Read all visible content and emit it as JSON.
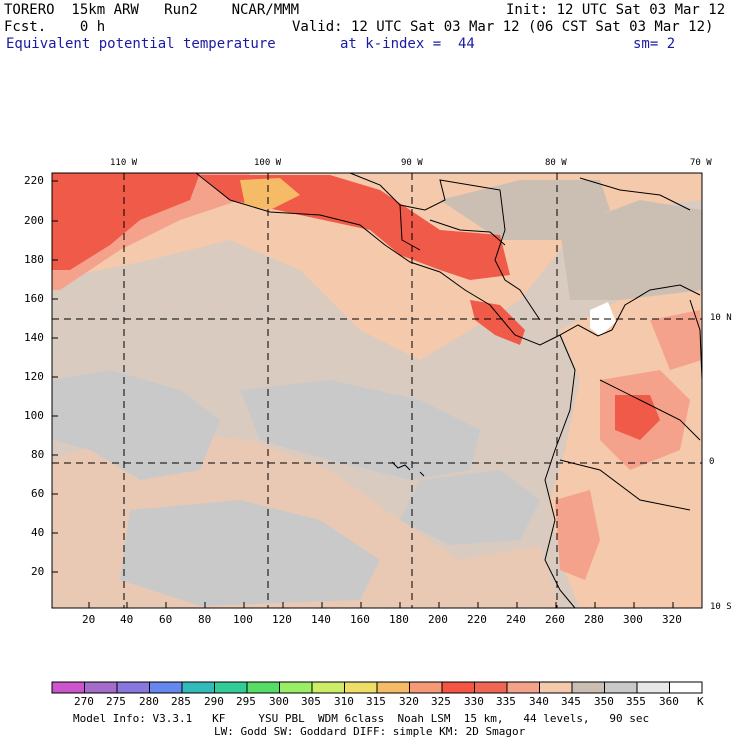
{
  "header": {
    "model": "TORERO  15km ARW   Run2    NCAR/MMM",
    "init": "Init: 12 UTC Sat 03 Mar 12",
    "fcst": "Fcst.    0 h",
    "valid": "Valid: 12 UTC Sat 03 Mar 12 (06 CST Sat 03 Mar 12)",
    "field": "Equivalent potential temperature",
    "kindex": "at k-index =  44",
    "smooth": "sm= 2"
  },
  "map": {
    "lon_labels": [
      "110 W",
      "100 W",
      "90 W",
      "80 W",
      "70 W"
    ],
    "lat_labels": [
      "10 N",
      "0",
      "10 S"
    ],
    "y_ticks": [
      "220",
      "200",
      "180",
      "160",
      "140",
      "120",
      "100",
      "80",
      "60",
      "40",
      "20"
    ],
    "x_ticks": [
      "20",
      "40",
      "60",
      "80",
      "100",
      "120",
      "140",
      "160",
      "180",
      "200",
      "220",
      "240",
      "260",
      "280",
      "300",
      "320"
    ]
  },
  "colorbar": {
    "labels": [
      "270",
      "275",
      "280",
      "285",
      "290",
      "295",
      "300",
      "305",
      "310",
      "315",
      "320",
      "325",
      "330",
      "335",
      "340",
      "345",
      "350",
      "355",
      "360"
    ],
    "unit": "K",
    "colors": [
      "#cc55cc",
      "#a66ccc",
      "#8877dd",
      "#6688ee",
      "#33bbbb",
      "#33cc99",
      "#55dd66",
      "#99ee66",
      "#ccee66",
      "#eedd66",
      "#f5bb66",
      "#f59977",
      "#f55544",
      "#f06655",
      "#f5a28c",
      "#f5c9ab",
      "#cbbfb4",
      "#c9c9c9",
      "#e8e8e8",
      "#ffffff"
    ]
  },
  "footer": {
    "line1": "Model Info: V3.3.1   KF     YSU PBL  WDM 6class  Noah LSM  15 km,   44 levels,   90 sec",
    "line2": "LW: Godd SW: Goddard DIFF: simple KM: 2D Smagor"
  },
  "colors": {
    "background_ocean": "#d9cbbf",
    "peach": "#f5c9ab",
    "salmon": "#f5a28c",
    "red": "#f05a48",
    "gray": "#c9c9c9",
    "text_blue": "#1a1aa6"
  }
}
